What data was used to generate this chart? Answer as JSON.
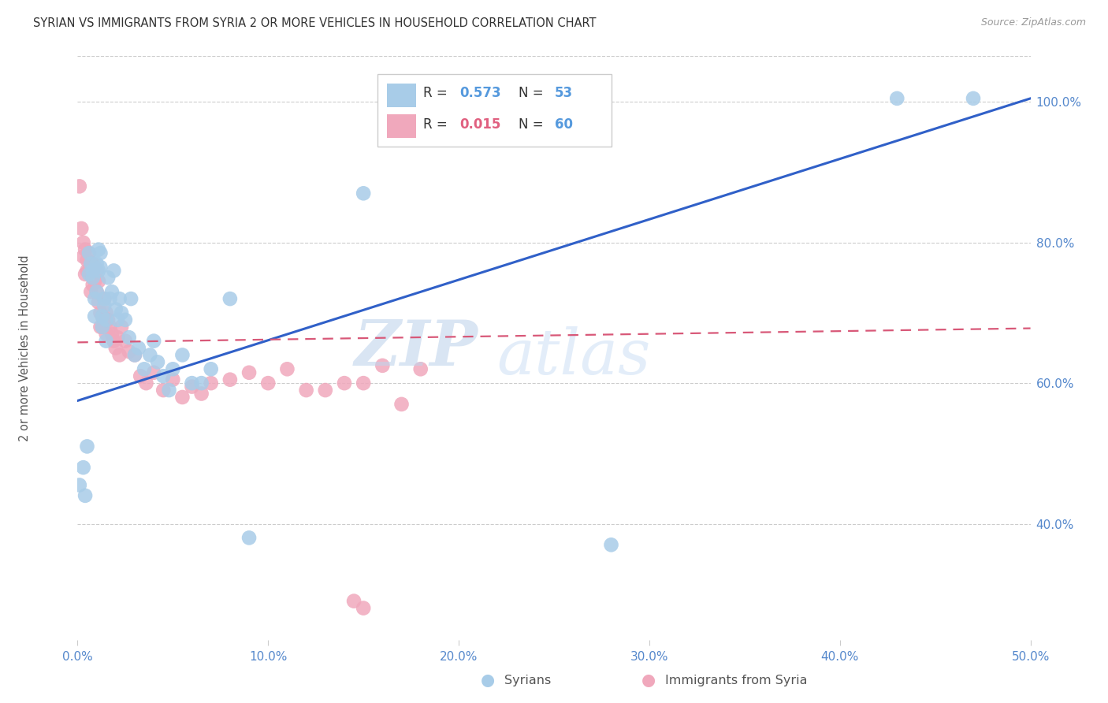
{
  "title": "SYRIAN VS IMMIGRANTS FROM SYRIA 2 OR MORE VEHICLES IN HOUSEHOLD CORRELATION CHART",
  "source": "Source: ZipAtlas.com",
  "ylabel": "2 or more Vehicles in Household",
  "x_min": 0.0,
  "x_max": 0.5,
  "y_min": 0.235,
  "y_max": 1.065,
  "x_ticks": [
    0.0,
    0.1,
    0.2,
    0.3,
    0.4,
    0.5
  ],
  "x_tick_labels": [
    "0.0%",
    "10.0%",
    "20.0%",
    "30.0%",
    "40.0%",
    "50.0%"
  ],
  "y_ticks": [
    0.4,
    0.6,
    0.8,
    1.0
  ],
  "y_tick_labels": [
    "40.0%",
    "60.0%",
    "80.0%",
    "100.0%"
  ],
  "blue_R": "0.573",
  "blue_N": "53",
  "pink_R": "0.015",
  "pink_N": "60",
  "blue_color": "#a8cce8",
  "pink_color": "#f0a8bc",
  "blue_line_color": "#3060c8",
  "pink_line_color": "#d85878",
  "watermark_zip": "ZIP",
  "watermark_atlas": "atlas",
  "legend_label_blue": "Syrians",
  "legend_label_pink": "Immigrants from Syria",
  "blue_scatter_x": [
    0.001,
    0.003,
    0.004,
    0.005,
    0.006,
    0.006,
    0.007,
    0.008,
    0.008,
    0.009,
    0.009,
    0.01,
    0.01,
    0.011,
    0.011,
    0.012,
    0.012,
    0.013,
    0.013,
    0.014,
    0.014,
    0.015,
    0.015,
    0.016,
    0.017,
    0.018,
    0.019,
    0.02,
    0.021,
    0.022,
    0.023,
    0.025,
    0.027,
    0.028,
    0.03,
    0.032,
    0.035,
    0.038,
    0.04,
    0.042,
    0.045,
    0.048,
    0.05,
    0.055,
    0.06,
    0.065,
    0.07,
    0.08,
    0.09,
    0.15,
    0.28,
    0.43,
    0.47
  ],
  "blue_scatter_y": [
    0.455,
    0.48,
    0.44,
    0.51,
    0.755,
    0.785,
    0.77,
    0.75,
    0.76,
    0.72,
    0.695,
    0.73,
    0.77,
    0.76,
    0.79,
    0.785,
    0.765,
    0.68,
    0.695,
    0.72,
    0.71,
    0.66,
    0.69,
    0.75,
    0.72,
    0.73,
    0.76,
    0.705,
    0.69,
    0.72,
    0.7,
    0.69,
    0.665,
    0.72,
    0.64,
    0.65,
    0.62,
    0.64,
    0.66,
    0.63,
    0.61,
    0.59,
    0.62,
    0.64,
    0.6,
    0.6,
    0.62,
    0.72,
    0.38,
    0.87,
    0.37,
    1.005,
    1.005
  ],
  "pink_scatter_x": [
    0.001,
    0.002,
    0.003,
    0.003,
    0.004,
    0.004,
    0.005,
    0.005,
    0.006,
    0.006,
    0.007,
    0.007,
    0.008,
    0.008,
    0.009,
    0.009,
    0.01,
    0.01,
    0.011,
    0.011,
    0.012,
    0.012,
    0.013,
    0.013,
    0.014,
    0.015,
    0.015,
    0.016,
    0.017,
    0.018,
    0.019,
    0.02,
    0.021,
    0.022,
    0.023,
    0.025,
    0.027,
    0.03,
    0.033,
    0.036,
    0.04,
    0.045,
    0.05,
    0.055,
    0.06,
    0.065,
    0.07,
    0.08,
    0.09,
    0.1,
    0.11,
    0.12,
    0.13,
    0.14,
    0.15,
    0.16,
    0.17,
    0.18,
    0.15,
    0.145
  ],
  "pink_scatter_y": [
    0.88,
    0.82,
    0.78,
    0.8,
    0.755,
    0.79,
    0.76,
    0.775,
    0.785,
    0.76,
    0.755,
    0.73,
    0.77,
    0.74,
    0.765,
    0.745,
    0.76,
    0.73,
    0.745,
    0.715,
    0.7,
    0.68,
    0.695,
    0.68,
    0.72,
    0.67,
    0.7,
    0.69,
    0.68,
    0.67,
    0.66,
    0.65,
    0.665,
    0.64,
    0.68,
    0.66,
    0.645,
    0.64,
    0.61,
    0.6,
    0.615,
    0.59,
    0.605,
    0.58,
    0.595,
    0.585,
    0.6,
    0.605,
    0.615,
    0.6,
    0.62,
    0.59,
    0.59,
    0.6,
    0.6,
    0.625,
    0.57,
    0.62,
    0.28,
    0.29
  ],
  "blue_line_x": [
    0.0,
    0.5
  ],
  "blue_line_y": [
    0.575,
    1.005
  ],
  "pink_line_x": [
    0.0,
    0.5
  ],
  "pink_line_y": [
    0.658,
    0.678
  ]
}
